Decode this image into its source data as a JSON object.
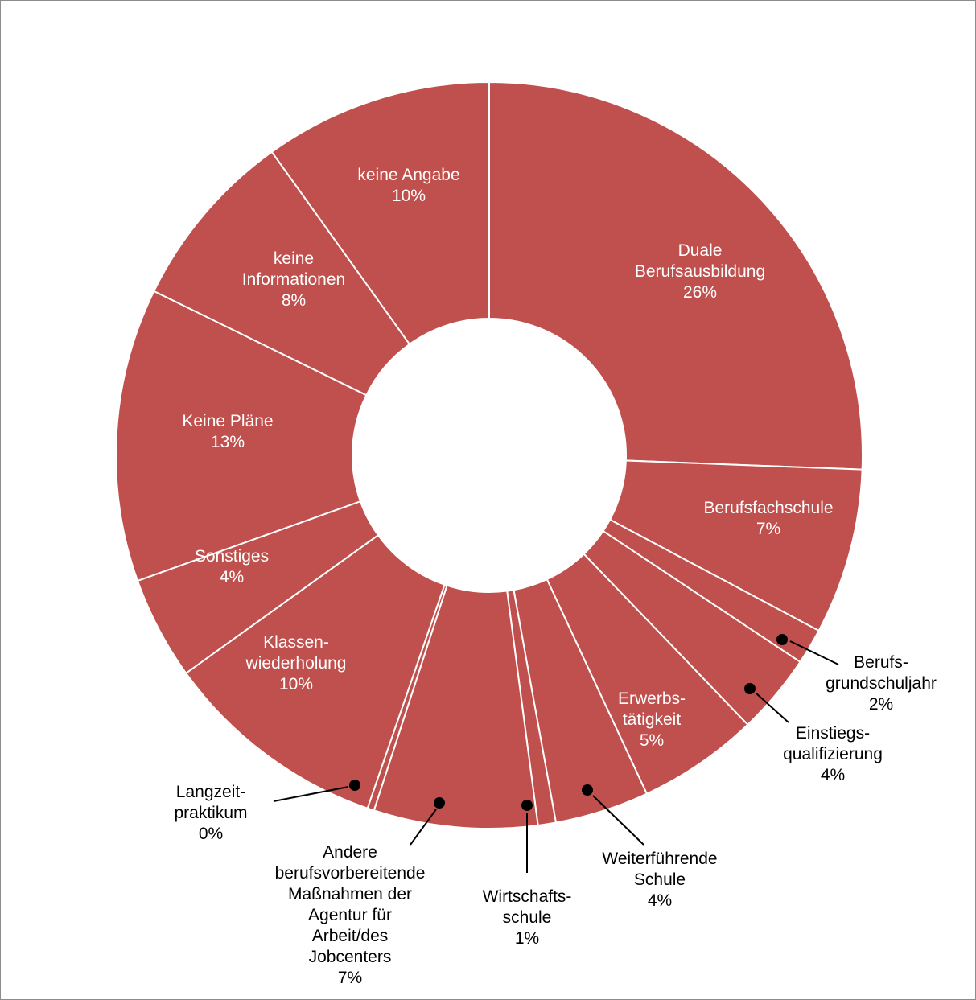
{
  "chart_data": {
    "type": "pie",
    "variant": "donut",
    "title": "",
    "color": "#c0504d",
    "label_color_inside": "#ffffff",
    "label_color_outside": "#000000",
    "slices": [
      {
        "label": [
          "Duale",
          "Berufsausbildung"
        ],
        "percent_label": "26%",
        "value": 26.4
      },
      {
        "label": [
          "Berufsfachschule"
        ],
        "percent_label": "7%",
        "value": 7.4
      },
      {
        "label": [
          "Berufs-",
          "grundschuljahr"
        ],
        "percent_label": "2%",
        "value": 1.6
      },
      {
        "label": [
          "Einstiegs-",
          "qualifizierung"
        ],
        "percent_label": "4%",
        "value": 3.6
      },
      {
        "label": [
          "Erwerbs-",
          "tätigkeit"
        ],
        "percent_label": "5%",
        "value": 5.4
      },
      {
        "label": [
          "Weiterführende",
          "Schule"
        ],
        "percent_label": "4%",
        "value": 4.2
      },
      {
        "label": [
          "Wirtschafts-",
          "schule"
        ],
        "percent_label": "1%",
        "value": 0.8
      },
      {
        "label": [
          "Andere",
          "berufsvorbereitende",
          "Maßnahmen der",
          "Agentur für",
          "Arbeit/des",
          "Jobcenters"
        ],
        "percent_label": "7%",
        "value": 7.3
      },
      {
        "label": [
          "Langzeit-",
          "praktikum"
        ],
        "percent_label": "0%",
        "value": 0.3
      },
      {
        "label": [
          "Klassen-",
          "wiederholung"
        ],
        "percent_label": "10%",
        "value": 10.1
      },
      {
        "label": [
          "Sonstiges"
        ],
        "percent_label": "4%",
        "value": 4.6
      },
      {
        "label": [
          "Keine Pläne"
        ],
        "percent_label": "13%",
        "value": 13.1
      },
      {
        "label": [
          "keine",
          "Informationen"
        ],
        "percent_label": "8%",
        "value": 8.1
      },
      {
        "label": [
          "keine Angabe"
        ],
        "percent_label": "10%",
        "value": 10.2
      }
    ],
    "legend": "none"
  }
}
